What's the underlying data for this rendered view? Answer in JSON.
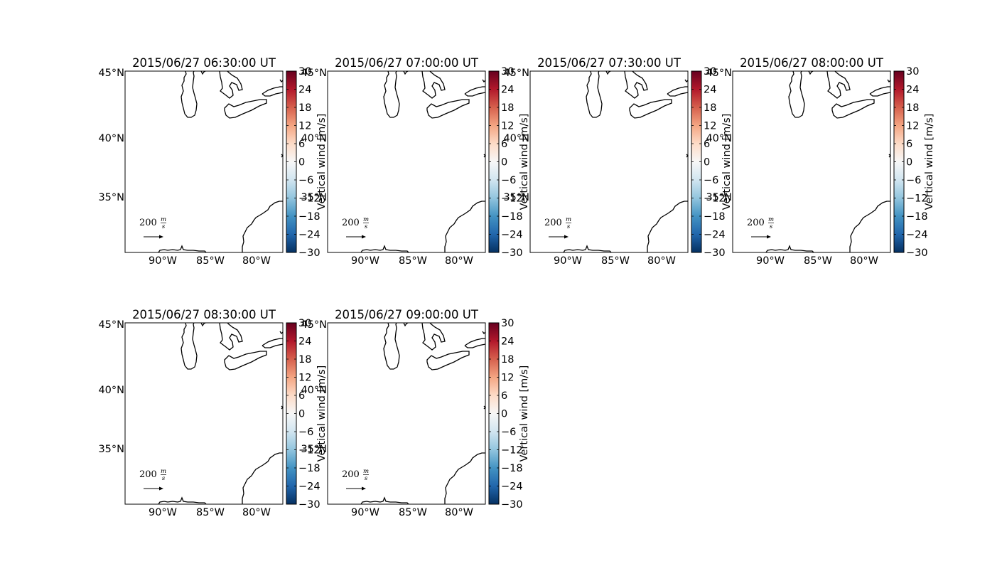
{
  "figure": {
    "colormap": "RdBu_r",
    "colorbar_colors": [
      "#053061",
      "#2166ac",
      "#4393c3",
      "#92c5de",
      "#d1e5f0",
      "#f7f7f7",
      "#fddbc7",
      "#f4a582",
      "#d6604d",
      "#b2182b",
      "#67001f"
    ],
    "coastline_color": "#000000",
    "panels": [
      {
        "title": "2015/06/27 06:30:00 UT"
      },
      {
        "title": "2015/06/27 07:00:00 UT"
      },
      {
        "title": "2015/06/27 07:30:00 UT"
      },
      {
        "title": "2015/06/27 08:00:00 UT"
      },
      {
        "title": "2015/06/27 08:30:00 UT"
      },
      {
        "title": "2015/06/27 09:00:00 UT"
      }
    ],
    "lat_ticks": [
      "45°N",
      "40°N",
      "35°N"
    ],
    "lon_ticks": [
      "90°W",
      "85°W",
      "80°W"
    ],
    "quiver_key": {
      "value": "200",
      "numerator": "m",
      "denominator": "s"
    },
    "colorbar": {
      "label": "Vertical wind [m/s]",
      "ticks": [
        "30",
        "24",
        "18",
        "12",
        "6",
        "0",
        "−6",
        "−12",
        "−18",
        "−24",
        "−30"
      ],
      "range": [
        -30,
        30
      ]
    }
  },
  "chart_data": {
    "type": "map",
    "variable": "Vertical wind [m/s]",
    "colormap": "RdBu_r",
    "color_range": [
      -30,
      30
    ],
    "lon_range": [
      -94,
      -77.5
    ],
    "lat_range": [
      30.5,
      45
    ],
    "frames": [
      "2015/06/27 06:30:00 UT",
      "2015/06/27 07:00:00 UT",
      "2015/06/27 07:30:00 UT",
      "2015/06/27 08:00:00 UT",
      "2015/06/27 08:30:00 UT",
      "2015/06/27 09:00:00 UT"
    ],
    "quiver_reference": "200 m/s"
  }
}
